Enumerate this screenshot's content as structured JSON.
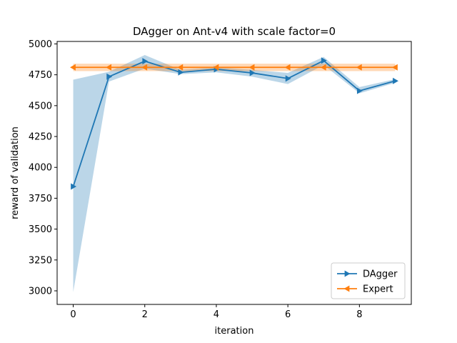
{
  "chart_data": {
    "type": "line",
    "title": "DAgger on Ant-v4 with scale factor=0",
    "xlabel": "iteration",
    "ylabel": "reward of validation",
    "xlim": [
      -0.45,
      9.45
    ],
    "ylim": [
      2890,
      5020
    ],
    "xticks": [
      0,
      2,
      4,
      6,
      8
    ],
    "yticks": [
      3000,
      3250,
      3500,
      3750,
      4000,
      4250,
      4500,
      4750,
      5000
    ],
    "x": [
      0,
      1,
      2,
      3,
      4,
      5,
      6,
      7,
      8,
      9
    ],
    "series": [
      {
        "name": "DAgger",
        "color": "#1f77b4",
        "marker": "triangle-right",
        "values": [
          3845,
          4735,
          4860,
          4770,
          4795,
          4765,
          4720,
          4865,
          4620,
          4700
        ],
        "band_upper": [
          4710,
          4775,
          4910,
          4790,
          4810,
          4790,
          4765,
          4895,
          4650,
          4715
        ],
        "band_lower": [
          2990,
          4695,
          4800,
          4755,
          4770,
          4735,
          4675,
          4830,
          4600,
          4685
        ]
      },
      {
        "name": "Expert",
        "color": "#ff7f0e",
        "marker": "triangle-left",
        "values": [
          4810,
          4810,
          4810,
          4810,
          4810,
          4810,
          4810,
          4810,
          4810,
          4810
        ],
        "band_upper": [
          4840,
          4840,
          4840,
          4840,
          4840,
          4840,
          4840,
          4840,
          4840,
          4840
        ],
        "band_lower": [
          4780,
          4780,
          4780,
          4780,
          4780,
          4780,
          4780,
          4780,
          4780,
          4780
        ]
      }
    ],
    "legend_position": "lower-right",
    "grid": false
  }
}
